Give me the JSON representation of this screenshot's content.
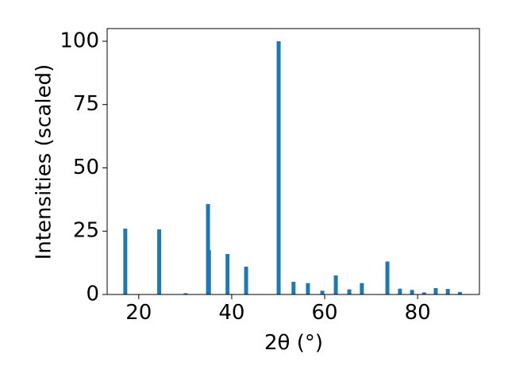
{
  "chart_data": {
    "type": "bar",
    "xlabel": "2θ (°)",
    "ylabel": "Intensities (scaled)",
    "x": [
      17.1,
      24.4,
      30.1,
      34.9,
      35.1,
      39.1,
      43.1,
      50.1,
      53.3,
      56.4,
      59.5,
      62.4,
      65.3,
      68.0,
      73.5,
      76.2,
      78.8,
      81.4,
      83.9,
      86.5,
      89.1
    ],
    "values": [
      26,
      25.7,
      0.5,
      35.7,
      17.5,
      16,
      11,
      100,
      5,
      4.5,
      1.5,
      7.5,
      2,
      4.5,
      13,
      2.3,
      1.8,
      0.8,
      2.5,
      2.2,
      1.0
    ],
    "color": "#1f77b4",
    "xlim": [
      13.2,
      93.3
    ],
    "xticks": [
      20,
      40,
      60,
      80
    ],
    "ylim": [
      0,
      105
    ],
    "yticks": [
      0,
      25,
      50,
      75,
      100
    ],
    "grid": false
  }
}
